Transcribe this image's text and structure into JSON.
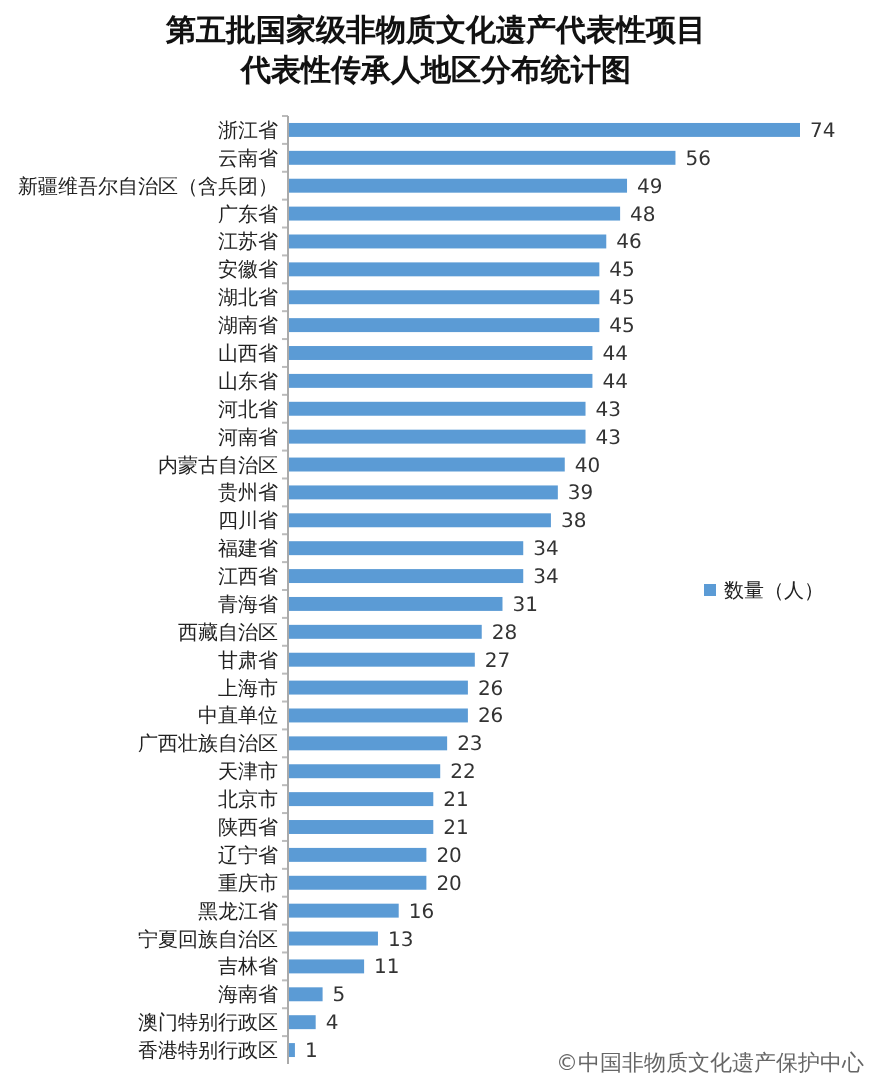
{
  "chart_data": {
    "type": "bar",
    "orientation": "horizontal",
    "title": "第五批国家级非物质文化遗产代表性项目",
    "subtitle": "代表性传承人地区分布统计图",
    "categories": [
      "浙江省",
      "云南省",
      "新疆维吾尔自治区（含兵团）",
      "广东省",
      "江苏省",
      "安徽省",
      "湖北省",
      "湖南省",
      "山西省",
      "山东省",
      "河北省",
      "河南省",
      "内蒙古自治区",
      "贵州省",
      "四川省",
      "福建省",
      "江西省",
      "青海省",
      "西藏自治区",
      "甘肃省",
      "上海市",
      "中直单位",
      "广西壮族自治区",
      "天津市",
      "北京市",
      "陕西省",
      "辽宁省",
      "重庆市",
      "黑龙江省",
      "宁夏回族自治区",
      "吉林省",
      "海南省",
      "澳门特别行政区",
      "香港特别行政区"
    ],
    "series": [
      {
        "name": "数量（人）",
        "color": "#5b9bd5",
        "values": [
          74,
          56,
          49,
          48,
          46,
          45,
          45,
          45,
          44,
          44,
          43,
          43,
          40,
          39,
          38,
          34,
          34,
          31,
          28,
          27,
          26,
          26,
          23,
          22,
          21,
          21,
          20,
          20,
          16,
          13,
          11,
          5,
          4,
          1
        ]
      }
    ],
    "data_labels": true,
    "legend": "right",
    "annotations": [
      "©中国非物质文化遗产保护中心"
    ]
  }
}
